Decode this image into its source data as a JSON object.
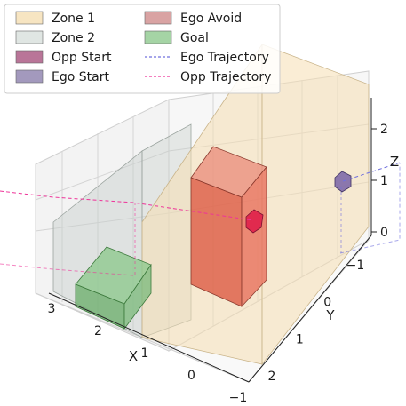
{
  "chart_data": {
    "type": "3d-scene",
    "title": "",
    "xlabel": "X",
    "ylabel": "Y",
    "zlabel": "Z",
    "x_ticks": [
      "3",
      "2",
      "1",
      "0",
      "−1"
    ],
    "y_ticks": [
      "−1",
      "0",
      "1",
      "2"
    ],
    "z_ticks": [
      "0",
      "1",
      "2"
    ],
    "xlim": [
      -1,
      3
    ],
    "ylim": [
      -1.5,
      2.5
    ],
    "zlim": [
      0,
      2.3
    ],
    "grid": true,
    "legend_position": "upper-left",
    "legend": [
      {
        "label": "Zone 1",
        "kind": "patch",
        "color": "#f5deb3"
      },
      {
        "label": "Zone 2",
        "kind": "patch",
        "color": "#d8e0dc"
      },
      {
        "label": "Opp Start",
        "kind": "patch",
        "color": "#a8527e"
      },
      {
        "label": "Ego Start",
        "kind": "patch",
        "color": "#8c7fac"
      },
      {
        "label": "Ego Avoid",
        "kind": "patch",
        "color": "#cf8c8c"
      },
      {
        "label": "Goal",
        "kind": "patch",
        "color": "#8fc98f"
      },
      {
        "label": "Ego Trajectory",
        "kind": "line",
        "color": "#7070dd"
      },
      {
        "label": "Opp Trajectory",
        "kind": "line",
        "color": "#ee3399"
      }
    ]
  }
}
